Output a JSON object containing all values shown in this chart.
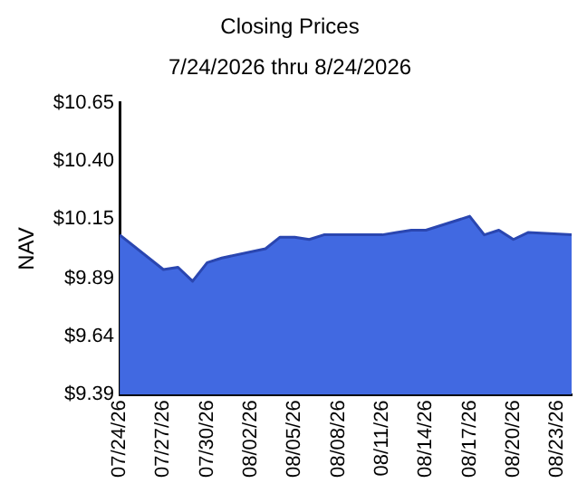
{
  "chart_data": {
    "type": "area",
    "title": "Closing Prices",
    "subtitle": "7/24/2026 thru 8/24/2026",
    "ylabel": "NAV",
    "x": [
      "2026-07-24",
      "2026-07-27",
      "2026-07-28",
      "2026-07-29",
      "2026-07-30",
      "2026-07-31",
      "2026-08-03",
      "2026-08-04",
      "2026-08-05",
      "2026-08-06",
      "2026-08-07",
      "2026-08-10",
      "2026-08-11",
      "2026-08-12",
      "2026-08-13",
      "2026-08-14",
      "2026-08-17",
      "2026-08-18",
      "2026-08-19",
      "2026-08-20",
      "2026-08-21",
      "2026-08-24"
    ],
    "series": [
      {
        "color": "#4169e1",
        "values": [
          10.08,
          9.93,
          9.94,
          9.88,
          9.96,
          9.98,
          10.02,
          10.07,
          10.07,
          10.06,
          10.08,
          10.08,
          10.08,
          10.09,
          10.1,
          10.1,
          10.16,
          10.08,
          10.1,
          10.06,
          10.09,
          10.08
        ]
      }
    ],
    "xlim": [
      "2026-07-24",
      "2026-08-24"
    ],
    "xticks": [
      {
        "value": "2026-07-24",
        "label": "07/24/26"
      },
      {
        "value": "2026-07-27",
        "label": "07/27/26"
      },
      {
        "value": "2026-07-30",
        "label": "07/30/26"
      },
      {
        "value": "2026-08-02",
        "label": "08/02/26"
      },
      {
        "value": "2026-08-05",
        "label": "08/05/26"
      },
      {
        "value": "2026-08-08",
        "label": "08/08/26"
      },
      {
        "value": "2026-08-11",
        "label": "08/11/26"
      },
      {
        "value": "2026-08-14",
        "label": "08/14/26"
      },
      {
        "value": "2026-08-17",
        "label": "08/17/26"
      },
      {
        "value": "2026-08-20",
        "label": "08/20/26"
      },
      {
        "value": "2026-08-23",
        "label": "08/23/26"
      }
    ],
    "ylim": [
      9.39,
      10.65
    ],
    "yticks": [
      {
        "value": 9.39,
        "label": "$9.39"
      },
      {
        "value": 9.64,
        "label": "$9.64"
      },
      {
        "value": 9.89,
        "label": "$9.89"
      },
      {
        "value": 10.15,
        "label": "$10.15"
      },
      {
        "value": 10.4,
        "label": "$10.40"
      },
      {
        "value": 10.65,
        "label": "$10.65"
      }
    ],
    "grid": false,
    "legend": false
  }
}
